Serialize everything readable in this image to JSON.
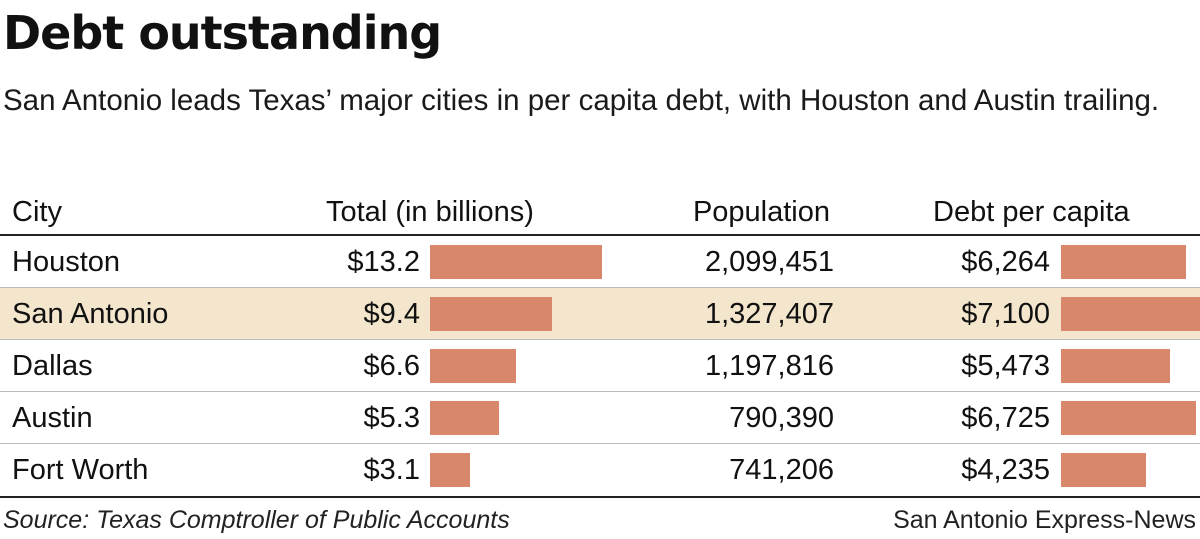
{
  "colors": {
    "bar": "#D9876B",
    "highlight_row": "#F3E6CC"
  },
  "chart_data": {
    "type": "table",
    "title": "Debt outstanding",
    "subtitle": "San Antonio leads Texas’ major cities in per capita debt, with Houston and Austin trailing.",
    "columns": [
      "City",
      "Total (in billions)",
      "Population",
      "Debt per capita"
    ],
    "rows": [
      {
        "city": "Houston",
        "total_label": "$13.2",
        "total": 13.2,
        "population": "2,099,451",
        "per_capita_label": "$6,264",
        "per_capita": 6264,
        "highlight": false
      },
      {
        "city": "San Antonio",
        "total_label": "$9.4",
        "total": 9.4,
        "population": "1,327,407",
        "per_capita_label": "$7,100",
        "per_capita": 7100,
        "highlight": true
      },
      {
        "city": "Dallas",
        "total_label": "$6.6",
        "total": 6.6,
        "population": "1,197,816",
        "per_capita_label": "$5,473",
        "per_capita": 5473,
        "highlight": false
      },
      {
        "city": "Austin",
        "total_label": "$5.3",
        "total": 5.3,
        "population": "790,390",
        "per_capita_label": "$6,725",
        "per_capita": 6725,
        "highlight": false
      },
      {
        "city": "Fort Worth",
        "total_label": "$3.1",
        "total": 3.1,
        "population": "741,206",
        "per_capita_label": "$4,235",
        "per_capita": 4235,
        "highlight": false
      }
    ],
    "source": "Source: Texas Comptroller of Public Accounts",
    "credit": "San Antonio Express-News"
  }
}
